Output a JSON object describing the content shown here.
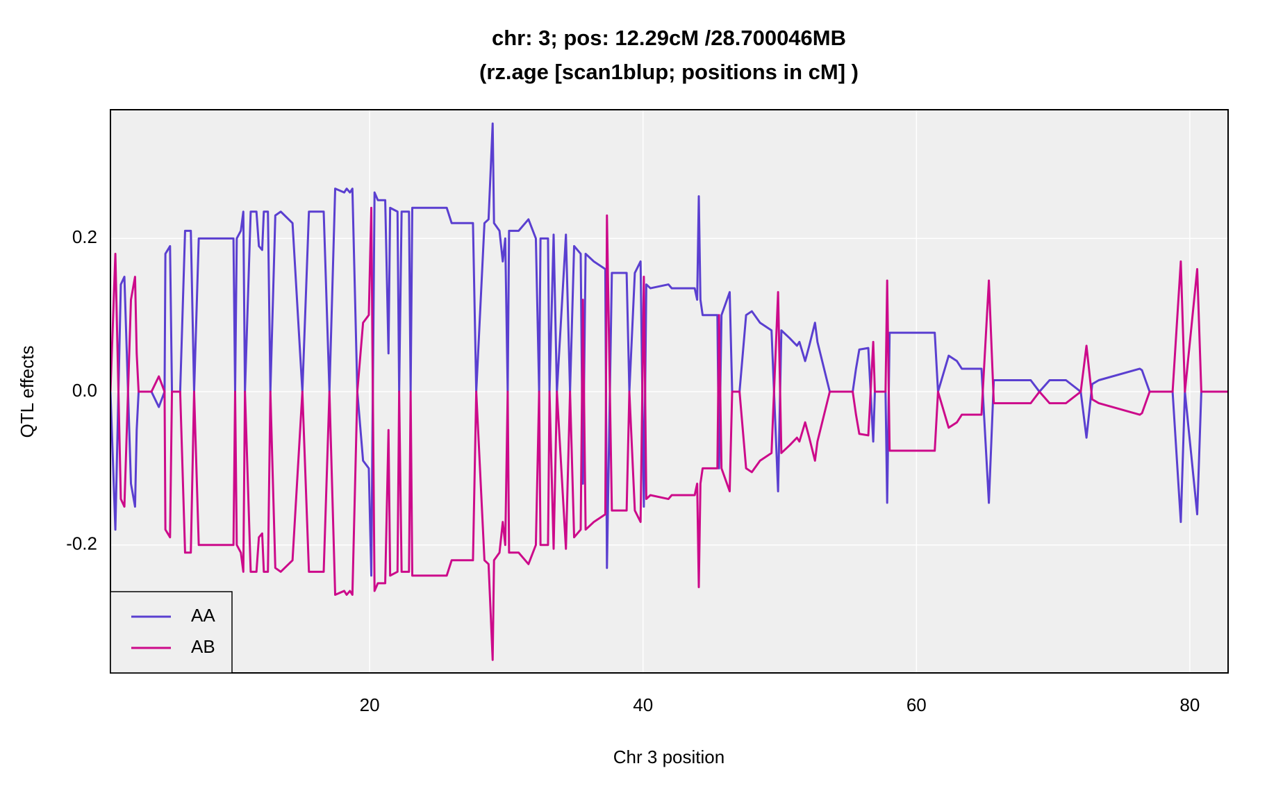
{
  "chart_data": {
    "type": "line",
    "title": [
      "chr: 3; pos: 12.29cM /28.700046MB",
      "(rz.age [scan1blup; positions in cM] )"
    ],
    "xlabel": "Chr 3 position",
    "ylabel": "QTL effects",
    "x": [
      1.04,
      1.4,
      1.8,
      2.06,
      2.54,
      2.84,
      2.96,
      3.1,
      4.04,
      4.58,
      5.0,
      5.06,
      5.4,
      5.54,
      6.14,
      6.5,
      6.92,
      7.16,
      7.5,
      8.66,
      10.04,
      10.16,
      10.28,
      10.58,
      10.76,
      10.88,
      11.3,
      11.72,
      11.9,
      12.14,
      12.26,
      12.56,
      12.74,
      13.1,
      13.5,
      14.36,
      15.08,
      15.56,
      16.64,
      17.06,
      17.48,
      18.14,
      18.32,
      18.56,
      18.74,
      19.1,
      19.52,
      19.94,
      20.12,
      20.36,
      20.6,
      21.14,
      21.38,
      21.5,
      22.04,
      22.16,
      22.34,
      22.88,
      23.0,
      23.12,
      23.54,
      25.64,
      26.0,
      27.14,
      27.56,
      27.8,
      28.4,
      28.7,
      29.0,
      29.1,
      29.5,
      29.74,
      29.92,
      30.1,
      30.2,
      30.9,
      31.62,
      32.16,
      32.4,
      32.5,
      33.05,
      33.16,
      33.46,
      33.7,
      34.36,
      34.66,
      34.96,
      35.44,
      35.6,
      35.8,
      36.4,
      37.24,
      37.36,
      37.72,
      38.8,
      39.0,
      39.4,
      39.82,
      40.06,
      40.24,
      40.54,
      41.86,
      42.1,
      43.06,
      43.78,
      43.96,
      44.08,
      44.2,
      44.36,
      45.44,
      45.56,
      45.74,
      46.34,
      46.52,
      47.06,
      47.54,
      47.96,
      48.56,
      49.4,
      49.88,
      50.12,
      50.72,
      51.26,
      51.44,
      51.86,
      52.16,
      52.58,
      52.76,
      53.66,
      55.34,
      55.58,
      55.82,
      56.48,
      56.84,
      56.96,
      57.74,
      57.86,
      58.04,
      60.26,
      61.34,
      61.58,
      62.36,
      62.96,
      63.32,
      64.76,
      65.3,
      65.66,
      67.16,
      68.36,
      69.0,
      69.74,
      70.94,
      72.02,
      72.44,
      72.86,
      73.34,
      76.34,
      76.5,
      77.06,
      78.74,
      79.34,
      79.64,
      80.54,
      80.84,
      82.8
    ],
    "series": [
      {
        "name": "AA",
        "color": "#5a3fd0",
        "values": [
          0,
          -0.18,
          0.14,
          0.15,
          -0.12,
          -0.15,
          -0.05,
          0,
          0,
          -0.02,
          0,
          0.18,
          0.19,
          0,
          0,
          0.21,
          0.21,
          0,
          0.2,
          0.2,
          0.2,
          0,
          0.2,
          0.21,
          0.235,
          0,
          0.235,
          0.235,
          0.19,
          0.185,
          0.235,
          0.235,
          0,
          0.23,
          0.235,
          0.22,
          0,
          0.235,
          0.235,
          0,
          0.265,
          0.26,
          0.265,
          0.26,
          0.265,
          0,
          -0.09,
          -0.1,
          -0.24,
          0.26,
          0.25,
          0.25,
          0.05,
          0.24,
          0.235,
          0,
          0.235,
          0.235,
          0,
          0.24,
          0.24,
          0.24,
          0.22,
          0.22,
          0.22,
          0,
          0.22,
          0.225,
          0.35,
          0.22,
          0.21,
          0.17,
          0.2,
          0,
          0.21,
          0.21,
          0.225,
          0.2,
          0,
          0.2,
          0.2,
          0,
          0.205,
          0,
          0.205,
          0,
          0.19,
          0.18,
          -0.12,
          0.18,
          0.17,
          0.16,
          -0.23,
          0.155,
          0.155,
          0,
          0.155,
          0.17,
          -0.15,
          0.14,
          0.135,
          0.14,
          0.135,
          0.135,
          0.135,
          0.12,
          0.255,
          0.12,
          0.1,
          0.1,
          -0.1,
          0.1,
          0.13,
          0,
          0,
          0.1,
          0.105,
          0.09,
          0.08,
          -0.13,
          0.08,
          0.07,
          0.06,
          0.065,
          0.04,
          0.06,
          0.09,
          0.065,
          0,
          0,
          0.03,
          0.055,
          0.057,
          -0.065,
          0,
          0,
          -0.145,
          0.077,
          0.077,
          0.077,
          0,
          0.047,
          0.04,
          0.03,
          0.03,
          -0.145,
          0.015,
          0.015,
          0.015,
          0,
          0.015,
          0.015,
          0,
          -0.06,
          0.01,
          0.015,
          0.03,
          0.028,
          0,
          0,
          -0.17,
          0,
          -0.16,
          0,
          0
        ]
      },
      {
        "name": "AB",
        "color": "#cc0a8a",
        "values": [
          0,
          0.18,
          -0.14,
          -0.15,
          0.12,
          0.15,
          0.05,
          0,
          0,
          0.02,
          0,
          -0.18,
          -0.19,
          0,
          0,
          -0.21,
          -0.21,
          0,
          -0.2,
          -0.2,
          -0.2,
          0,
          -0.2,
          -0.21,
          -0.235,
          0,
          -0.235,
          -0.235,
          -0.19,
          -0.185,
          -0.235,
          -0.235,
          0,
          -0.23,
          -0.235,
          -0.22,
          0,
          -0.235,
          -0.235,
          0,
          -0.265,
          -0.26,
          -0.265,
          -0.26,
          -0.265,
          0,
          0.09,
          0.1,
          0.24,
          -0.26,
          -0.25,
          -0.25,
          -0.05,
          -0.24,
          -0.235,
          0,
          -0.235,
          -0.235,
          0,
          -0.24,
          -0.24,
          -0.24,
          -0.22,
          -0.22,
          -0.22,
          0,
          -0.22,
          -0.225,
          -0.35,
          -0.22,
          -0.21,
          -0.17,
          -0.2,
          0,
          -0.21,
          -0.21,
          -0.225,
          -0.2,
          0,
          -0.2,
          -0.2,
          0,
          -0.205,
          0,
          -0.205,
          0,
          -0.19,
          -0.18,
          0.12,
          -0.18,
          -0.17,
          -0.16,
          0.23,
          -0.155,
          -0.155,
          0,
          -0.155,
          -0.17,
          0.15,
          -0.14,
          -0.135,
          -0.14,
          -0.135,
          -0.135,
          -0.135,
          -0.12,
          -0.255,
          -0.12,
          -0.1,
          -0.1,
          0.1,
          -0.1,
          -0.13,
          0,
          0,
          -0.1,
          -0.105,
          -0.09,
          -0.08,
          0.13,
          -0.08,
          -0.07,
          -0.06,
          -0.065,
          -0.04,
          -0.06,
          -0.09,
          -0.065,
          0,
          0,
          -0.03,
          -0.055,
          -0.057,
          0.065,
          0,
          0,
          0.145,
          -0.077,
          -0.077,
          -0.077,
          0,
          -0.047,
          -0.04,
          -0.03,
          -0.03,
          0.145,
          -0.015,
          -0.015,
          -0.015,
          0,
          -0.015,
          -0.015,
          0,
          0.06,
          -0.01,
          -0.015,
          -0.03,
          -0.028,
          0,
          0,
          0.17,
          0,
          0.16,
          0,
          0
        ]
      }
    ],
    "xlim": [
      1.04,
      82.8
    ],
    "ylim": [
      -0.367,
      0.368
    ],
    "xticks": [
      20,
      40,
      60,
      80
    ],
    "yticks": [
      -0.2,
      {
        "value": 0,
        "label": "0.0"
      },
      0.2
    ],
    "grid": true,
    "legend": "bottom-left"
  }
}
